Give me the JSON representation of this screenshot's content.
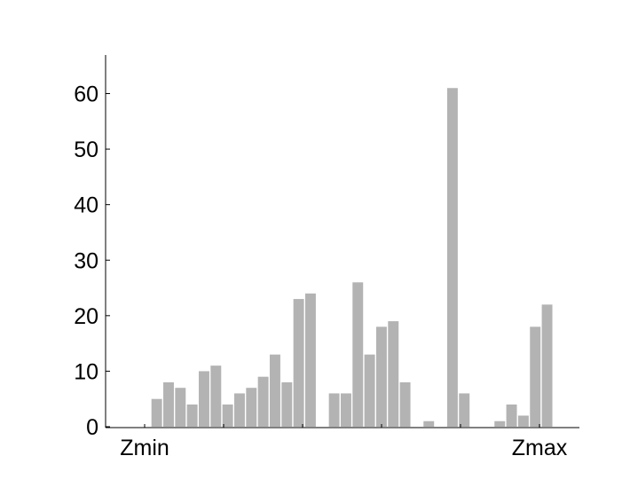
{
  "chart_data": {
    "type": "bar",
    "title": "",
    "xlabel": "",
    "ylabel": "",
    "x_tick_labels": [
      "Zmin",
      "Zmax"
    ],
    "y_ticks": [
      0,
      10,
      20,
      30,
      40,
      50,
      60
    ],
    "ylim": [
      0,
      67
    ],
    "bin_count": 40,
    "values": [
      0,
      0,
      0,
      5,
      8,
      7,
      4,
      10,
      11,
      4,
      6,
      7,
      9,
      13,
      8,
      23,
      24,
      0,
      6,
      6,
      26,
      13,
      18,
      19,
      8,
      0,
      1,
      0,
      61,
      6,
      0,
      0,
      1,
      4,
      2,
      18,
      22,
      0,
      0,
      0
    ],
    "bar_color": "#b3b3b3",
    "grid": false,
    "legend": "none"
  }
}
